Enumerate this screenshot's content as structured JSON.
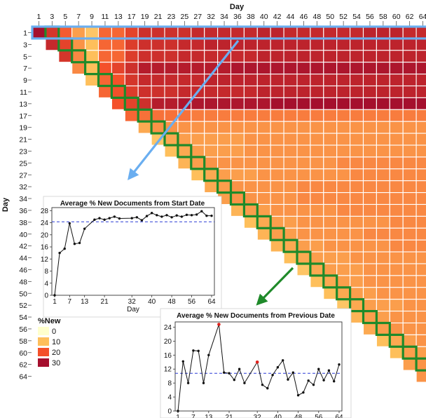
{
  "chart_data": [
    {
      "type": "heatmap",
      "title": "",
      "xlabel": "Day",
      "ylabel": "Day",
      "x_tick_labels": [
        "1",
        "3",
        "5",
        "7",
        "9",
        "11",
        "13",
        "17",
        "19",
        "21",
        "23",
        "25",
        "27",
        "32",
        "34",
        "36",
        "38",
        "40",
        "42",
        "44",
        "46",
        "48",
        "50",
        "52",
        "54",
        "56",
        "58",
        "60",
        "62",
        "64"
      ],
      "y_tick_labels": [
        "1",
        "3",
        "5",
        "7",
        "9",
        "11",
        "13",
        "17",
        "19",
        "21",
        "23",
        "25",
        "27",
        "32",
        "34",
        "36",
        "38",
        "40",
        "42",
        "44",
        "46",
        "48",
        "50",
        "52",
        "54",
        "56",
        "58",
        "60",
        "62",
        "64"
      ],
      "value_rows_upper_triangle": [
        [
          30,
          24,
          19,
          13,
          9,
          18,
          18,
          22,
          25,
          25,
          25,
          25,
          26,
          26,
          26,
          26,
          26,
          27,
          27,
          26,
          26,
          26,
          26,
          26,
          26,
          27,
          27,
          27,
          26,
          26
        ],
        [
          26,
          22,
          14,
          10,
          18,
          18,
          23,
          25,
          25,
          25,
          26,
          26,
          27,
          27,
          27,
          27,
          27,
          27,
          27,
          27,
          27,
          27,
          27,
          27,
          27,
          27,
          27,
          27,
          27
        ],
        [
          24,
          15,
          10,
          18,
          18,
          23,
          25,
          25,
          25,
          26,
          26,
          26,
          26,
          26,
          26,
          27,
          27,
          27,
          27,
          27,
          27,
          27,
          27,
          27,
          27,
          27,
          27,
          27
        ],
        [
          15,
          10,
          20,
          22,
          25,
          28,
          28,
          28,
          28,
          28,
          28,
          28,
          29,
          29,
          29,
          29,
          29,
          29,
          29,
          29,
          29,
          29,
          29,
          29,
          29,
          29,
          29
        ],
        [
          10,
          18,
          20,
          24,
          26,
          26,
          26,
          26,
          26,
          27,
          27,
          27,
          27,
          27,
          27,
          27,
          27,
          27,
          27,
          27,
          27,
          27,
          27,
          27,
          27,
          27
        ],
        [
          18,
          20,
          23,
          25,
          25,
          25,
          26,
          26,
          26,
          26,
          26,
          26,
          27,
          27,
          27,
          27,
          27,
          27,
          27,
          27,
          27,
          27,
          27,
          27,
          27
        ],
        [
          20,
          22,
          25,
          28,
          28,
          29,
          29,
          29,
          29,
          29,
          29,
          29,
          30,
          30,
          30,
          30,
          30,
          30,
          30,
          30,
          30,
          30,
          30,
          30
        ],
        [
          18,
          17,
          17,
          17,
          17,
          16,
          16,
          16,
          16,
          16,
          16,
          16,
          16,
          16,
          16,
          16,
          16,
          16,
          16,
          16,
          16,
          16,
          16
        ],
        [
          12,
          14,
          14,
          14,
          14,
          14,
          14,
          14,
          14,
          14,
          14,
          14,
          14,
          14,
          14,
          14,
          14,
          14,
          14,
          14,
          14,
          14
        ],
        [
          9,
          12,
          13,
          13,
          13,
          13,
          13,
          14,
          14,
          14,
          14,
          14,
          14,
          14,
          14,
          14,
          14,
          14,
          14,
          14,
          14
        ],
        [
          10,
          12,
          13,
          13,
          13,
          13,
          14,
          14,
          14,
          14,
          14,
          14,
          14,
          14,
          14,
          14,
          14,
          14,
          14,
          14
        ],
        [
          11,
          13,
          14,
          14,
          14,
          14,
          14,
          14,
          14,
          14,
          14,
          14,
          15,
          15,
          15,
          15,
          15,
          15,
          15
        ],
        [
          10,
          12,
          13,
          13,
          13,
          14,
          14,
          14,
          14,
          14,
          14,
          14,
          15,
          15,
          15,
          15,
          15,
          15
        ],
        [
          12,
          13,
          14,
          14,
          14,
          14,
          14,
          15,
          15,
          15,
          15,
          15,
          15,
          15,
          15,
          15,
          15
        ],
        [
          13,
          14,
          14,
          14,
          14,
          14,
          15,
          15,
          15,
          15,
          15,
          15,
          15,
          15,
          15,
          15
        ],
        [
          11,
          13,
          13,
          14,
          14,
          14,
          14,
          14,
          15,
          15,
          15,
          15,
          15,
          15,
          15
        ],
        [
          10,
          12,
          13,
          13,
          14,
          14,
          14,
          14,
          14,
          14,
          14,
          15,
          15,
          15
        ],
        [
          11,
          13,
          13,
          14,
          14,
          14,
          14,
          14,
          15,
          15,
          15,
          15,
          15
        ],
        [
          11,
          12,
          13,
          13,
          14,
          14,
          14,
          14,
          14,
          15,
          15,
          15
        ],
        [
          10,
          12,
          13,
          13,
          13,
          14,
          14,
          14,
          14,
          14,
          14
        ],
        [
          9,
          12,
          13,
          13,
          13,
          14,
          14,
          14,
          14,
          14
        ],
        [
          10,
          12,
          13,
          13,
          14,
          14,
          14,
          14,
          14
        ],
        [
          10,
          12,
          13,
          13,
          14,
          14,
          14,
          14
        ],
        [
          9,
          12,
          13,
          13,
          13,
          14,
          14
        ],
        [
          11,
          13,
          13,
          14,
          14,
          14
        ],
        [
          12,
          13,
          14,
          14,
          14
        ],
        [
          10,
          12,
          13,
          14
        ],
        [
          10,
          13,
          13
        ],
        [
          13,
          14
        ],
        [
          14
        ]
      ],
      "color_scale": {
        "legend_title": "%New",
        "stops": [
          {
            "label": "0",
            "value": 0,
            "color": "#ffffcc"
          },
          {
            "label": "10",
            "value": 10,
            "color": "#febf5b"
          },
          {
            "label": "20",
            "value": 20,
            "color": "#f4502a"
          },
          {
            "label": "30",
            "value": 30,
            "color": "#a50f2d"
          }
        ]
      },
      "highlights": {
        "first_row_color": "#6aaef0",
        "diagonal_color": "#1f8a2a"
      }
    },
    {
      "type": "line",
      "title": "Average % New Documents from Start Date",
      "xlabel": "Day",
      "ylabel": "",
      "x_ticks": [
        "1",
        "7",
        "13",
        "21",
        "32",
        "40",
        "48",
        "56",
        "64"
      ],
      "y_ticks": [
        "0",
        "4",
        "8",
        "12",
        "16",
        "20",
        "24",
        "28"
      ],
      "xlim": [
        1,
        64
      ],
      "ylim": [
        0,
        29
      ],
      "reference_line": 24.3,
      "series": [
        {
          "x": [
            1,
            3,
            5,
            7,
            9,
            11,
            13,
            17,
            19,
            21,
            23,
            25,
            27,
            32,
            34,
            36,
            38,
            40,
            42,
            44,
            46,
            48,
            50,
            52,
            54,
            56,
            58,
            60,
            62,
            64
          ],
          "values": [
            0,
            14,
            15.4,
            23.8,
            17,
            17.3,
            22,
            25,
            25.5,
            25,
            25.5,
            26,
            25.4,
            25.5,
            25.8,
            24.8,
            26.2,
            27.2,
            26.5,
            26,
            26.5,
            25.8,
            26.4,
            26,
            26.6,
            26.5,
            26.7,
            27.8,
            26.3,
            26.3
          ]
        }
      ]
    },
    {
      "type": "line",
      "title": "Average % New Documents from Previous Date",
      "xlabel": "",
      "ylabel": "",
      "x_ticks": [
        "1",
        "7",
        "13",
        "21",
        "32",
        "40",
        "48",
        "56",
        "64"
      ],
      "y_ticks": [
        "0",
        "4",
        "8",
        "12",
        "16",
        "20",
        "24"
      ],
      "xlim": [
        1,
        64
      ],
      "ylim": [
        0,
        25.5
      ],
      "reference_line": 10.8,
      "series": [
        {
          "x": [
            1,
            3,
            5,
            7,
            9,
            11,
            13,
            17,
            19,
            21,
            23,
            25,
            27,
            32,
            34,
            36,
            38,
            40,
            42,
            44,
            46,
            48,
            50,
            52,
            54,
            56,
            58,
            60,
            62,
            64
          ],
          "values": [
            0,
            14.2,
            8,
            17.3,
            17.2,
            8,
            16,
            24.8,
            11,
            10.8,
            8.9,
            12,
            8,
            14,
            7.5,
            6.5,
            10.3,
            12.5,
            14.5,
            9,
            11,
            4.5,
            5.3,
            8.7,
            7.5,
            12,
            8.8,
            11.6,
            8.5,
            13.3
          ],
          "highlighted_points": [
            17,
            32
          ]
        }
      ]
    }
  ]
}
